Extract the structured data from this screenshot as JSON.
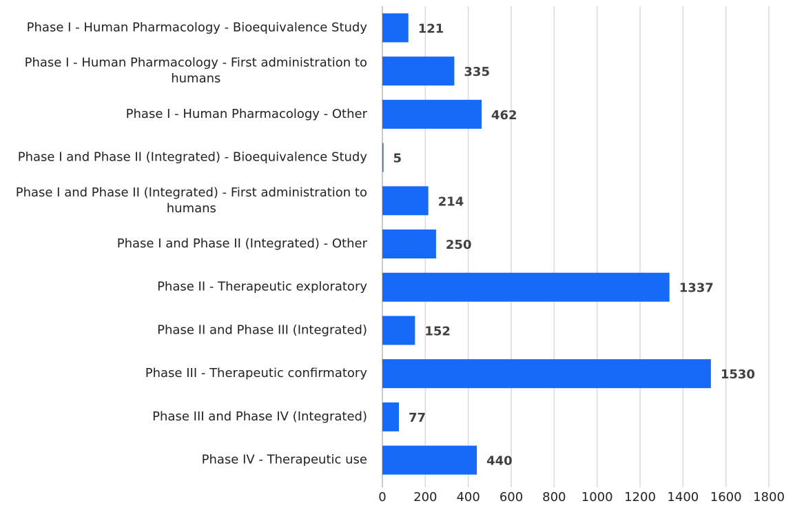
{
  "chart_data": {
    "type": "bar",
    "orientation": "horizontal",
    "categories": [
      "Phase I - Human Pharmacology - Bioequivalence Study",
      "Phase I - Human Pharmacology - First administration to humans",
      "Phase I - Human Pharmacology - Other",
      "Phase I and Phase II (Integrated) - Bioequivalence Study",
      "Phase I and Phase II (Integrated) - First administration to humans",
      "Phase I and Phase II (Integrated) - Other",
      "Phase II - Therapeutic exploratory",
      "Phase II and Phase III (Integrated)",
      "Phase III - Therapeutic confirmatory",
      "Phase III and Phase IV (Integrated)",
      "Phase IV - Therapeutic use"
    ],
    "values": [
      121,
      335,
      462,
      5,
      214,
      250,
      1337,
      152,
      1530,
      77,
      440
    ],
    "color": "#1769f7",
    "xlim": [
      0,
      1800
    ],
    "xticks": [
      0,
      200,
      400,
      600,
      800,
      1000,
      1200,
      1400,
      1600,
      1800
    ],
    "grid": true
  }
}
